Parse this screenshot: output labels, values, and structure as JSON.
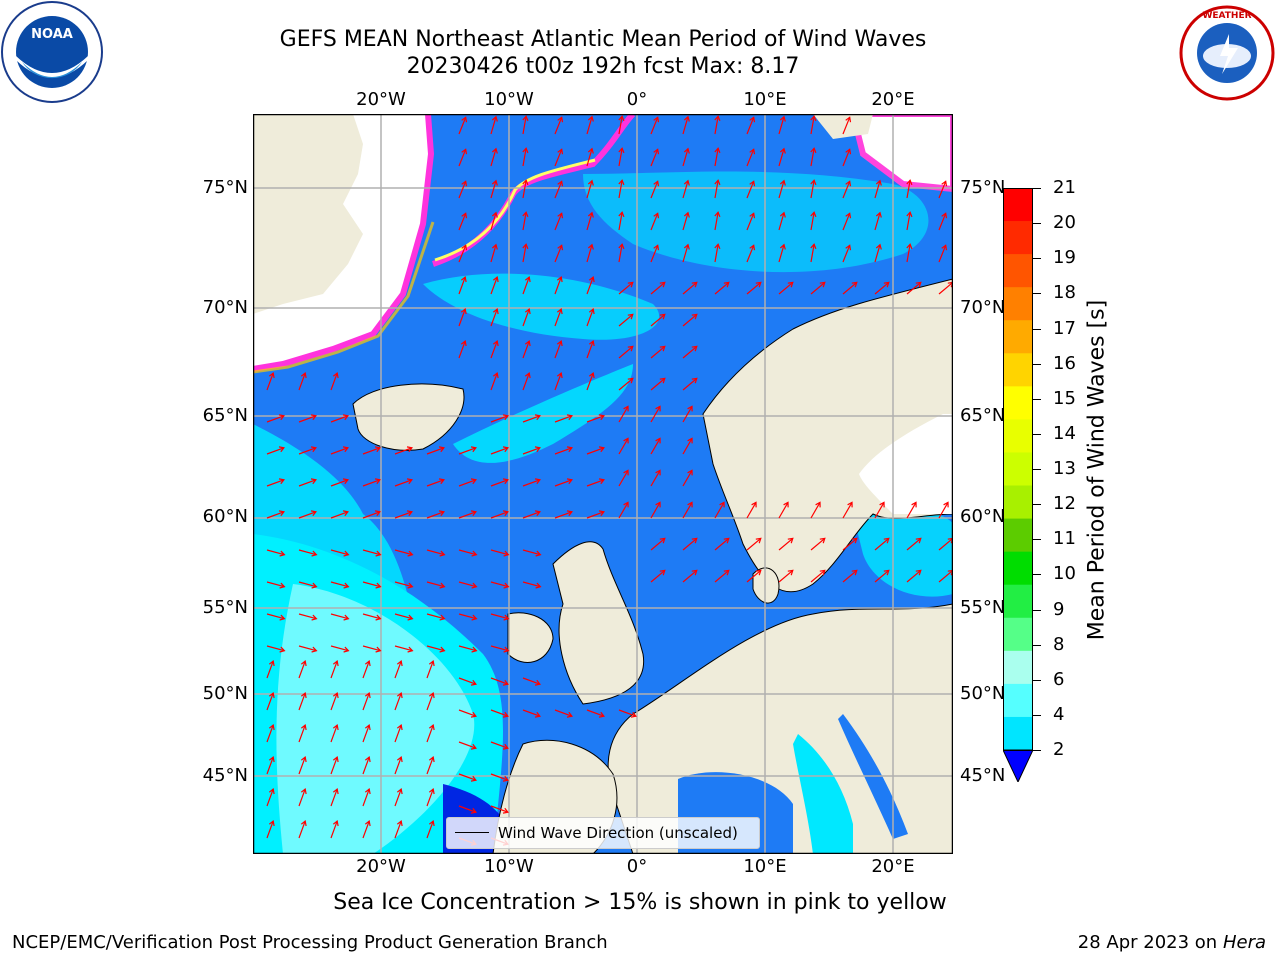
{
  "header": {
    "title_line1": "GEFS MEAN Northeast Atlantic Mean Period of Wind Waves",
    "title_line2": "20230426 t00z 192h fcst   Max: 8.17"
  },
  "logos": {
    "left_text": "NOAA",
    "right_text": "NATIONAL WEATHER SERVICE"
  },
  "map": {
    "lon_labels_top": [
      "20°W",
      "10°W",
      "0°",
      "10°E",
      "20°E"
    ],
    "lon_labels_bottom": [
      "20°W",
      "10°W",
      "0°",
      "10°E",
      "20°E"
    ],
    "lat_labels_left": [
      "75°N",
      "70°N",
      "65°N",
      "60°N",
      "55°N",
      "50°N",
      "45°N"
    ],
    "lat_labels_right": [
      "75°N",
      "70°N",
      "65°N",
      "60°N",
      "55°N",
      "50°N",
      "45°N"
    ],
    "colors": {
      "ocean_low": "#1e7bf5",
      "ocean_mid": "#00e8ff",
      "ocean_high": "#55ffff",
      "land": "#efecda",
      "ice_edge": "#ff33dd",
      "arrow": "#ff0000",
      "grid": "#b0b0b0"
    }
  },
  "legend": {
    "label": "Wind Wave Direction (unscaled)"
  },
  "colorbar": {
    "label": "Mean Period of Wind Waves [s]",
    "ticks": [
      "21",
      "20",
      "19",
      "18",
      "17",
      "16",
      "15",
      "14",
      "13",
      "12",
      "11",
      "10",
      "9",
      "8",
      "6",
      "4",
      "2"
    ],
    "colors": [
      "#ff0000",
      "#ff2a00",
      "#ff5500",
      "#ff8000",
      "#ffaa00",
      "#ffd400",
      "#ffff00",
      "#e8ff00",
      "#ccff00",
      "#a8f000",
      "#5ccc00",
      "#00dd00",
      "#22ee44",
      "#55ff88",
      "#aaffee",
      "#55ffff",
      "#00e5ff",
      "#1e7bf5"
    ]
  },
  "note": "Sea Ice Concentration > 15% is shown in pink to yellow",
  "footer": {
    "left": "NCEP/EMC/Verification Post Processing Product Generation Branch",
    "right_prefix": "28 Apr 2023 on",
    "right_host": "Hera"
  }
}
